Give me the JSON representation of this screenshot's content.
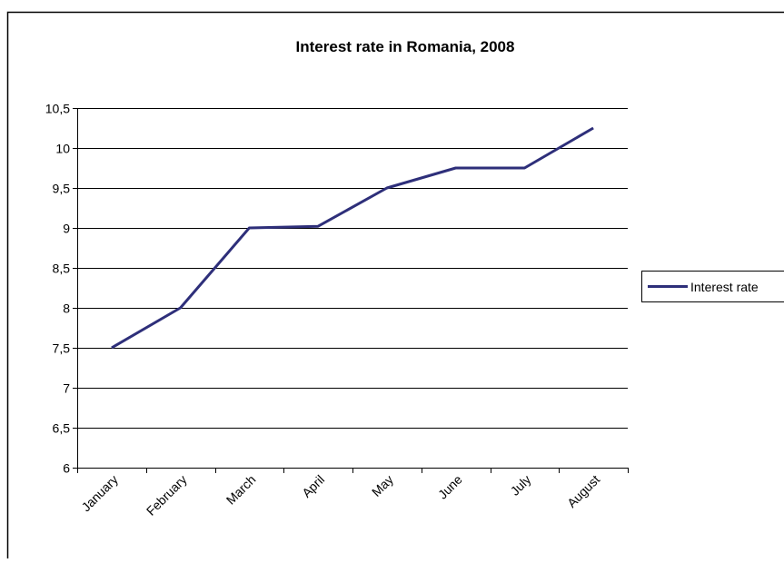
{
  "chart_data": {
    "type": "line",
    "title": "Interest rate in Romania, 2008",
    "categories": [
      "January",
      "February",
      "March",
      "April",
      "May",
      "June",
      "July",
      "August"
    ],
    "series": [
      {
        "name": "Interest rate",
        "values": [
          7.5,
          8.0,
          9.0,
          9.02,
          9.5,
          9.75,
          9.75,
          10.25
        ],
        "color": "#2e2f7a"
      }
    ],
    "ylim": [
      6,
      10.5
    ],
    "yticks": [
      6,
      6.5,
      7,
      7.5,
      8,
      8.5,
      9,
      9.5,
      10,
      10.5
    ],
    "ytick_labels": [
      "6",
      "6,5",
      "7",
      "7,5",
      "8",
      "8,5",
      "9",
      "9,5",
      "10",
      "10,5"
    ],
    "grid": true,
    "legend_position": "right",
    "colors": {
      "axis": "#000000",
      "gridline": "#000000",
      "frame": "#000000"
    }
  }
}
